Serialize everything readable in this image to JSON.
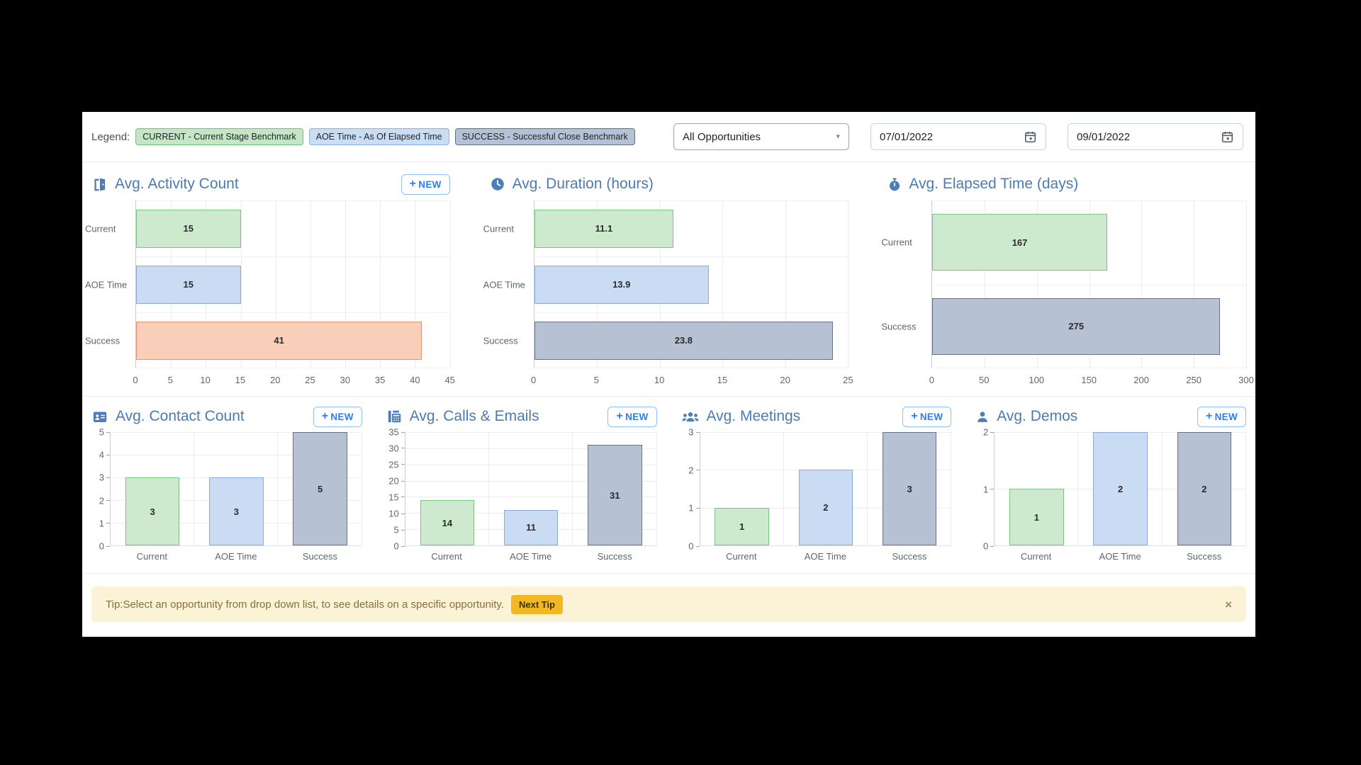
{
  "header": {
    "legend_label": "Legend:",
    "legend_badges": [
      {
        "label": "CURRENT - Current Stage Benchmark",
        "bg": "#c3e6c4",
        "border": "#77bd7c"
      },
      {
        "label": "AOE Time - As Of Elapsed Time",
        "bg": "#c9ddf4",
        "border": "#8db2e0"
      },
      {
        "label": "SUCCESS - Successful Close Benchmark",
        "bg": "#b3c2d5",
        "border": "#5d738d"
      }
    ],
    "opportunity_filter": {
      "value": "All Opportunities",
      "caret_icon": "▾"
    },
    "date_from": {
      "value": "07/01/2022"
    },
    "date_to": {
      "value": "09/01/2022"
    }
  },
  "new_button": {
    "plus": "+",
    "label": "NEW"
  },
  "palette": {
    "green": {
      "fill": "#cde9ce",
      "border": "#7cc282"
    },
    "blue": {
      "fill": "#c9dcf3",
      "border": "#8aabd8"
    },
    "slate": {
      "fill": "#b6c2d3",
      "border": "#64758c"
    },
    "salmon": {
      "fill": "#f9cfba",
      "border": "#ea9270"
    },
    "title_color": "#4b7cb1"
  },
  "chart_data": [
    {
      "id": "activity-count",
      "type": "bar",
      "orientation": "horizontal",
      "title": "Avg. Activity Count",
      "icon": "door-open",
      "new_button": true,
      "categories": [
        "Current",
        "AOE Time",
        "Success"
      ],
      "values": [
        15,
        15,
        41
      ],
      "labels": [
        "15",
        "15",
        "41"
      ],
      "colors": [
        "green",
        "blue",
        "salmon"
      ],
      "xlim": [
        0,
        45
      ],
      "xticks": [
        0,
        5,
        10,
        15,
        20,
        25,
        30,
        35,
        40,
        45
      ]
    },
    {
      "id": "duration-hours",
      "type": "bar",
      "orientation": "horizontal",
      "title": "Avg. Duration (hours)",
      "icon": "clock",
      "new_button": false,
      "categories": [
        "Current",
        "AOE Time",
        "Success"
      ],
      "values": [
        11.1,
        13.9,
        23.8
      ],
      "labels": [
        "11.1",
        "13.9",
        "23.8"
      ],
      "colors": [
        "green",
        "blue",
        "slate"
      ],
      "xlim": [
        0,
        25
      ],
      "xticks": [
        0,
        5,
        10,
        15,
        20,
        25
      ]
    },
    {
      "id": "elapsed-days",
      "type": "bar",
      "orientation": "horizontal",
      "title": "Avg. Elapsed Time (days)",
      "icon": "stopwatch",
      "new_button": false,
      "categories": [
        "Current",
        "Success"
      ],
      "values": [
        167,
        275
      ],
      "labels": [
        "167",
        "275"
      ],
      "colors": [
        "green",
        "slate"
      ],
      "xlim": [
        0,
        300
      ],
      "xticks": [
        0,
        50,
        100,
        150,
        200,
        250,
        300
      ]
    },
    {
      "id": "contact-count",
      "type": "bar",
      "orientation": "vertical",
      "title": "Avg. Contact Count",
      "icon": "address-card",
      "new_button": true,
      "categories": [
        "Current",
        "AOE Time",
        "Success"
      ],
      "values": [
        3,
        3,
        5
      ],
      "labels": [
        "3",
        "3",
        "5"
      ],
      "colors": [
        "green",
        "blue",
        "slate"
      ],
      "ylim": [
        0,
        5
      ],
      "yticks": [
        0,
        1,
        2,
        3,
        4,
        5
      ]
    },
    {
      "id": "calls-emails",
      "type": "bar",
      "orientation": "vertical",
      "title": "Avg. Calls & Emails",
      "icon": "fax",
      "new_button": true,
      "categories": [
        "Current",
        "AOE Time",
        "Success"
      ],
      "values": [
        14,
        11,
        31
      ],
      "labels": [
        "14",
        "11",
        "31"
      ],
      "colors": [
        "green",
        "blue",
        "slate"
      ],
      "ylim": [
        0,
        35
      ],
      "yticks": [
        0,
        5,
        10,
        15,
        20,
        25,
        30,
        35
      ]
    },
    {
      "id": "meetings",
      "type": "bar",
      "orientation": "vertical",
      "title": "Avg. Meetings",
      "icon": "users",
      "new_button": true,
      "categories": [
        "Current",
        "AOE Time",
        "Success"
      ],
      "values": [
        1,
        2,
        3
      ],
      "labels": [
        "1",
        "2",
        "3"
      ],
      "colors": [
        "green",
        "blue",
        "slate"
      ],
      "ylim": [
        0,
        3
      ],
      "yticks": [
        0,
        1,
        2,
        3
      ]
    },
    {
      "id": "demos",
      "type": "bar",
      "orientation": "vertical",
      "title": "Avg. Demos",
      "icon": "user",
      "new_button": true,
      "categories": [
        "Current",
        "AOE Time",
        "Success"
      ],
      "values": [
        1,
        2,
        2
      ],
      "labels": [
        "1",
        "2",
        "2"
      ],
      "colors": [
        "green",
        "blue",
        "slate"
      ],
      "ylim": [
        0,
        2
      ],
      "yticks": [
        0,
        1,
        2
      ]
    }
  ],
  "tip_bar": {
    "text": "Tip:Select an opportunity from drop down list, to see details on a specific opportunity.",
    "next_tip_label": "Next Tip",
    "close_icon": "×"
  }
}
